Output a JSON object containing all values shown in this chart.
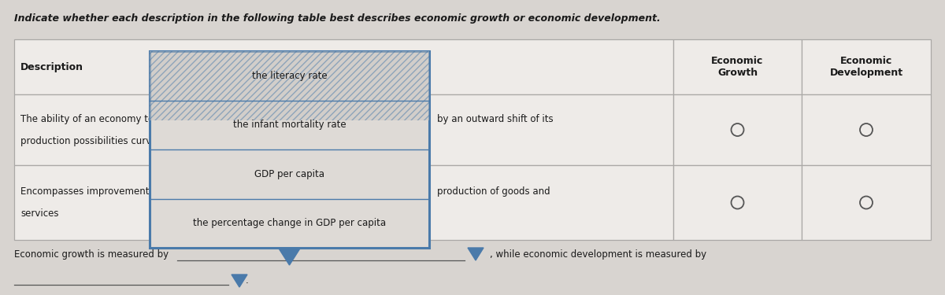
{
  "title": "Indicate whether each description in the following table best describes economic growth or economic development.",
  "title_fontsize": 9.0,
  "bg_color": "#e8e4e0",
  "table_bg": "#eeebe8",
  "header_text1": "Economic\nGrowth",
  "header_text2": "Economic\nDevelopment",
  "desc_label": "Description",
  "row1_left_a": "The ability of an economy to pr",
  "row1_left_b": "production possibilities curve (P",
  "row1_right": "by an outward shift of its",
  "row2_left_a": "Encompasses improvement in t",
  "row2_left_b": "services",
  "row2_right": "production of goods and",
  "bottom_text1": "Economic growth is measured by",
  "bottom_text2": ", while economic development is measured by",
  "dropdown_items": [
    "the literacy rate",
    "the infant mortality rate",
    "GDP per capita",
    "the percentage change in GDP per capita"
  ],
  "dropdown_bg": "#dedad6",
  "dropdown_border": "#4a7aaa",
  "table_border": "#aaa8a6",
  "circle_color": "#555555"
}
